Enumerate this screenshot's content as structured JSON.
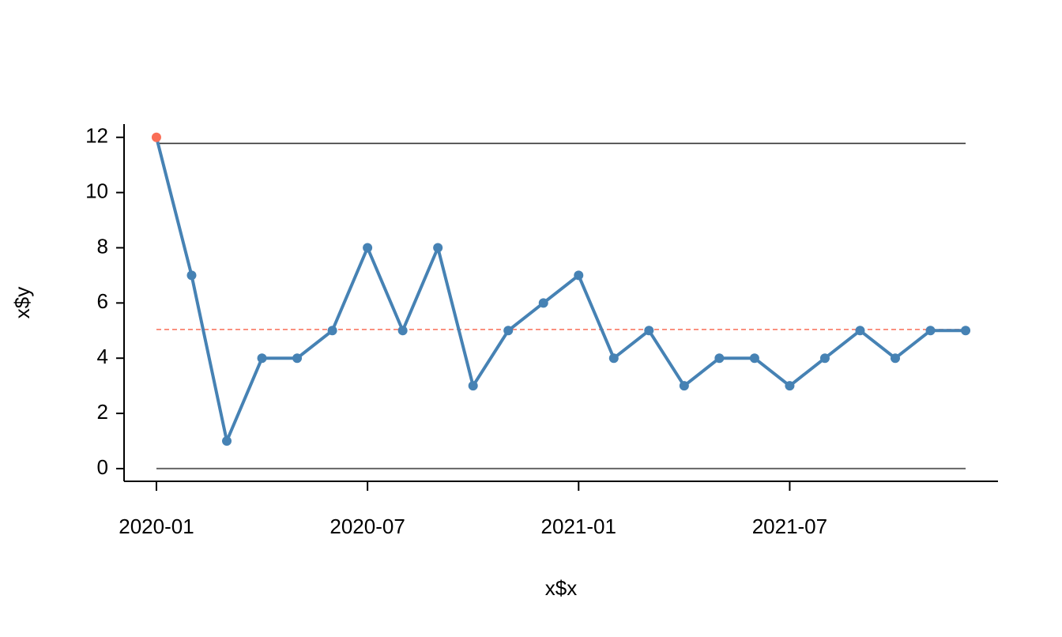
{
  "chart_data": {
    "type": "line",
    "x_label": "x$x",
    "y_label": "x$y",
    "x": [
      "2020-01",
      "2020-02",
      "2020-03",
      "2020-04",
      "2020-05",
      "2020-06",
      "2020-07",
      "2020-08",
      "2020-09",
      "2020-10",
      "2020-11",
      "2020-12",
      "2021-01",
      "2021-02",
      "2021-03",
      "2021-04",
      "2021-05",
      "2021-06",
      "2021-07",
      "2021-08",
      "2021-09",
      "2021-10",
      "2021-11",
      "2021-12"
    ],
    "values": [
      12,
      7,
      1,
      4,
      4,
      5,
      8,
      5,
      8,
      3,
      5,
      6,
      7,
      4,
      5,
      3,
      4,
      4,
      3,
      4,
      5,
      4,
      5,
      5
    ],
    "color": "#4682b4",
    "marker_colors": [
      "#fa6e57",
      "#4682b4",
      "#4682b4",
      "#4682b4",
      "#4682b4",
      "#4682b4",
      "#4682b4",
      "#4682b4",
      "#4682b4",
      "#4682b4",
      "#4682b4",
      "#4682b4",
      "#4682b4",
      "#4682b4",
      "#4682b4",
      "#4682b4",
      "#4682b4",
      "#4682b4",
      "#4682b4",
      "#4682b4",
      "#4682b4",
      "#4682b4",
      "#4682b4",
      "#4682b4"
    ],
    "center_line": 5.04,
    "center_color": "#fa6e57",
    "ucl": 11.78,
    "lcl": 0,
    "ylim": [
      -0.46,
      12.48
    ],
    "yticks": [
      0,
      2,
      4,
      6,
      8,
      10,
      12
    ],
    "xticks": [
      "2020-01",
      "2020-07",
      "2021-01",
      "2021-07"
    ]
  }
}
